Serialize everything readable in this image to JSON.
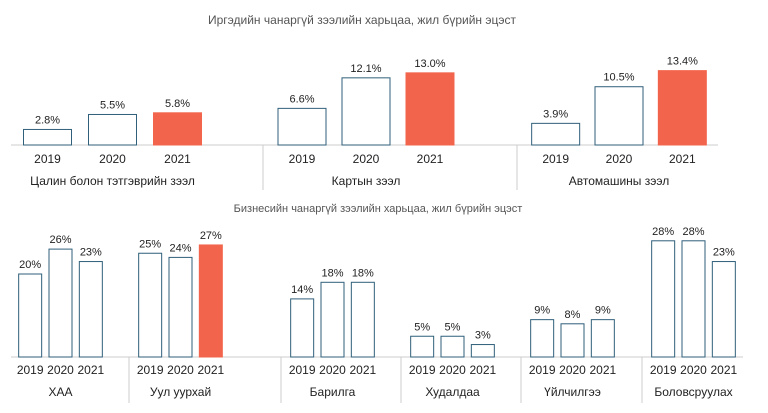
{
  "colors": {
    "bar_outline": "#2f5f7a",
    "highlight": "#f2644c",
    "axis": "#cccccc",
    "text": "#222222",
    "title": "#555555"
  },
  "chart_data": [
    {
      "type": "bar",
      "title": "Иргэдийн чанаргүй зээлийн харьцаа, жил бүрийн эцэст",
      "groups": [
        {
          "label": "Цалин болон тэтгэврийн зээл",
          "categories": [
            "2019",
            "2020",
            "2021"
          ],
          "values": [
            2.8,
            5.5,
            5.8
          ],
          "value_labels": [
            "2.8%",
            "5.5%",
            "5.8%"
          ],
          "highlight": [
            false,
            false,
            true
          ]
        },
        {
          "label": "Картын зээл",
          "categories": [
            "2019",
            "2020",
            "2021"
          ],
          "values": [
            6.6,
            12.1,
            13.0
          ],
          "value_labels": [
            "6.6%",
            "12.1%",
            "13.0%"
          ],
          "highlight": [
            false,
            false,
            true
          ]
        },
        {
          "label": "Автомашины зээл",
          "categories": [
            "2019",
            "2020",
            "2021"
          ],
          "values": [
            3.9,
            10.5,
            13.4
          ],
          "value_labels": [
            "3.9%",
            "10.5%",
            "13.4%"
          ],
          "highlight": [
            false,
            false,
            true
          ]
        }
      ]
    },
    {
      "type": "bar",
      "title": "Бизнесийн чанаргүй зээлийн харьцаа, жил бүрийн эцэст",
      "groups": [
        {
          "label": "ХАА",
          "categories": [
            "2019",
            "2020",
            "2021"
          ],
          "values": [
            20,
            26,
            23
          ],
          "value_labels": [
            "20%",
            "26%",
            "23%"
          ],
          "highlight": [
            false,
            false,
            false
          ]
        },
        {
          "label": "Уул уурхай",
          "categories": [
            "2019",
            "2020",
            "2021"
          ],
          "values": [
            25,
            24,
            27
          ],
          "value_labels": [
            "25%",
            "24%",
            "27%"
          ],
          "highlight": [
            false,
            false,
            true
          ]
        },
        {
          "label": "Барилга",
          "categories": [
            "2019",
            "2020",
            "2021"
          ],
          "values": [
            14,
            18,
            18
          ],
          "value_labels": [
            "14%",
            "18%",
            "18%"
          ],
          "highlight": [
            false,
            false,
            false
          ]
        },
        {
          "label": "Худалдаа",
          "categories": [
            "2019",
            "2020",
            "2021"
          ],
          "values": [
            5,
            5,
            3
          ],
          "value_labels": [
            "5%",
            "5%",
            "3%"
          ],
          "highlight": [
            false,
            false,
            false
          ]
        },
        {
          "label": "Үйлчилгээ",
          "categories": [
            "2019",
            "2020",
            "2021"
          ],
          "values": [
            9,
            8,
            9
          ],
          "value_labels": [
            "9%",
            "8%",
            "9%"
          ],
          "highlight": [
            false,
            false,
            false
          ]
        },
        {
          "label": "Боловсруулах",
          "categories": [
            "2019",
            "2020",
            "2021"
          ],
          "values": [
            28,
            28,
            23
          ],
          "value_labels": [
            "28%",
            "28%",
            "23%"
          ],
          "highlight": [
            false,
            false,
            false
          ]
        }
      ]
    }
  ]
}
